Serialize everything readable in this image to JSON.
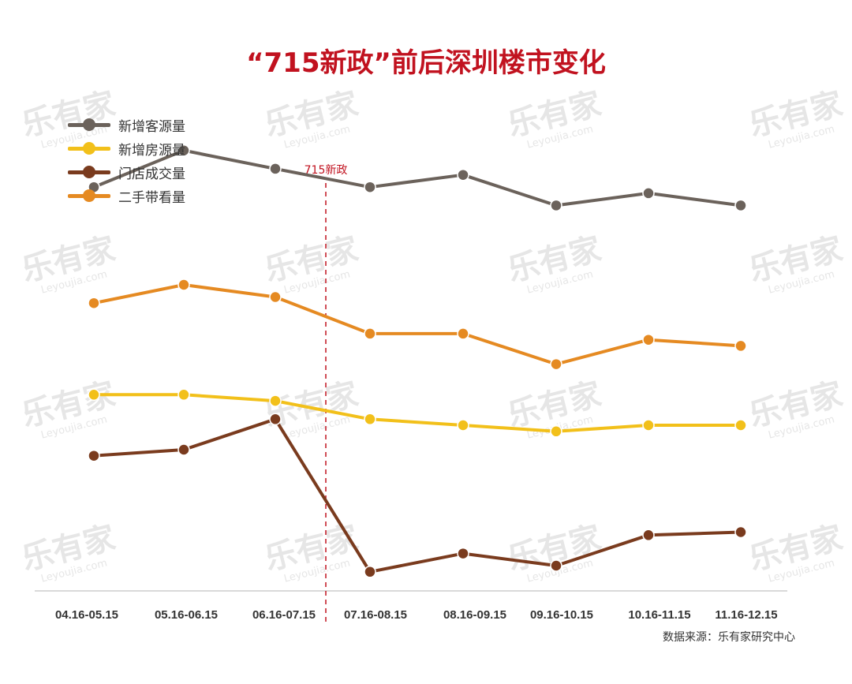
{
  "title": "“715新政”前后深圳楼市变化",
  "source": "数据来源：乐有家研究中心",
  "watermark": {
    "brand": "乐有家",
    "url": "Leyoujia.com"
  },
  "chart_data": {
    "type": "line",
    "title": "“715新政”前后深圳楼市变化",
    "categories": [
      "04.16-05.15",
      "05.16-06.15",
      "06.16-07.15",
      "07.16-08.15",
      "08.16-09.15",
      "09.16-10.15",
      "10.16-11.15",
      "11.16-12.15"
    ],
    "series": [
      {
        "name": "新增客源量",
        "color": "#6b625b",
        "values": [
          66,
          72,
          69,
          66,
          68,
          63,
          65,
          63
        ]
      },
      {
        "name": "新增房源量",
        "color": "#f2c01a",
        "values": [
          32,
          32,
          31,
          28,
          27,
          26,
          27,
          27
        ]
      },
      {
        "name": "门店成交量",
        "color": "#7a3b1e",
        "values": [
          22,
          23,
          28,
          3,
          6,
          4,
          9,
          9.5
        ]
      },
      {
        "name": "二手带看量",
        "color": "#e58a22",
        "values": [
          47,
          50,
          48,
          42,
          42,
          37,
          41,
          40
        ]
      }
    ],
    "annotation": {
      "label": "715新政",
      "after_category_index": 2,
      "color": "#c1121f",
      "style": "dashed"
    },
    "yaxis_visible": false,
    "grid": false,
    "legend_position": "top-left"
  }
}
